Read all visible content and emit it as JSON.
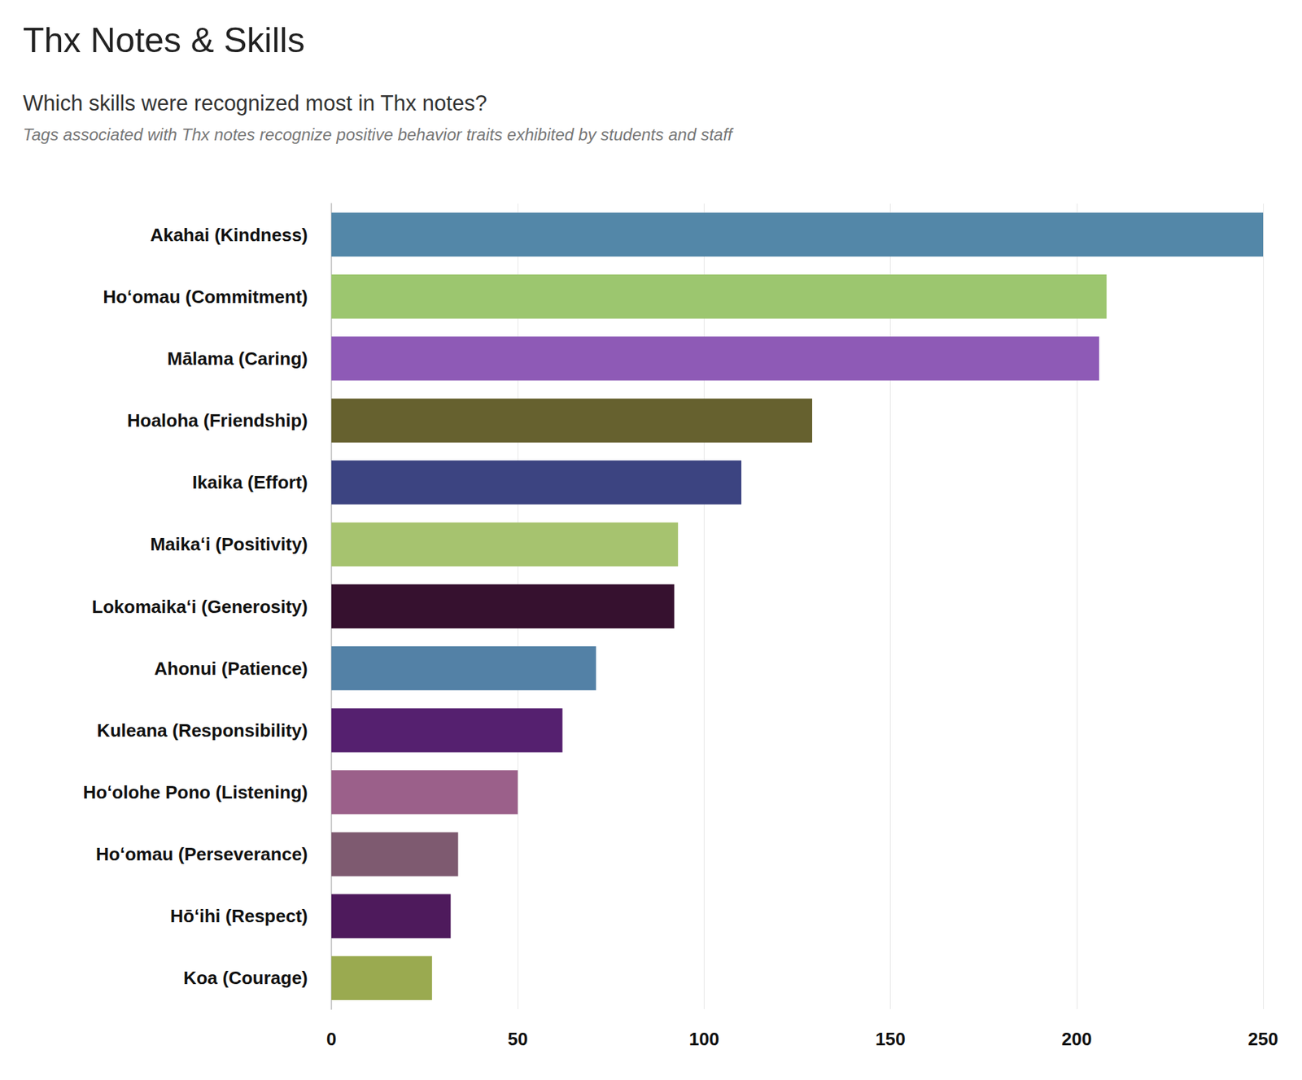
{
  "chart_data": {
    "type": "bar",
    "title": "Thx Notes & Skills",
    "subtitle": "Which skills were recognized most in Thx notes?",
    "annotation": "Tags associated with Thx notes recognize positive behavior traits exhibited by students and staff",
    "orientation": "horizontal",
    "categories": [
      "Akahai (Kindness)",
      "Hoʻomau (Commitment)",
      "Mālama (Caring)",
      "Hoaloha (Friendship)",
      "Ikaika (Effort)",
      "Maikaʻi (Positivity)",
      "Lokomaikaʻi (Generosity)",
      "Ahonui (Patience)",
      "Kuleana (Responsibility)",
      "Hoʻolohe Pono (Listening)",
      "Hoʻomau (Perseverance)",
      "Hōʻihi (Respect)",
      "Koa (Courage)"
    ],
    "values": [
      250,
      208,
      206,
      129,
      110,
      93,
      92,
      71,
      62,
      50,
      34,
      32,
      27
    ],
    "colors": [
      "#5387a8",
      "#9cc66f",
      "#8e5ab6",
      "#66612f",
      "#3c4481",
      "#a6c36f",
      "#36112f",
      "#5381a6",
      "#55206f",
      "#9b608a",
      "#7e5a70",
      "#4e1a5c",
      "#9aaa50"
    ],
    "xlim": [
      0,
      250
    ],
    "xticks": [
      0,
      50,
      100,
      150,
      200,
      250
    ],
    "grid": true
  }
}
